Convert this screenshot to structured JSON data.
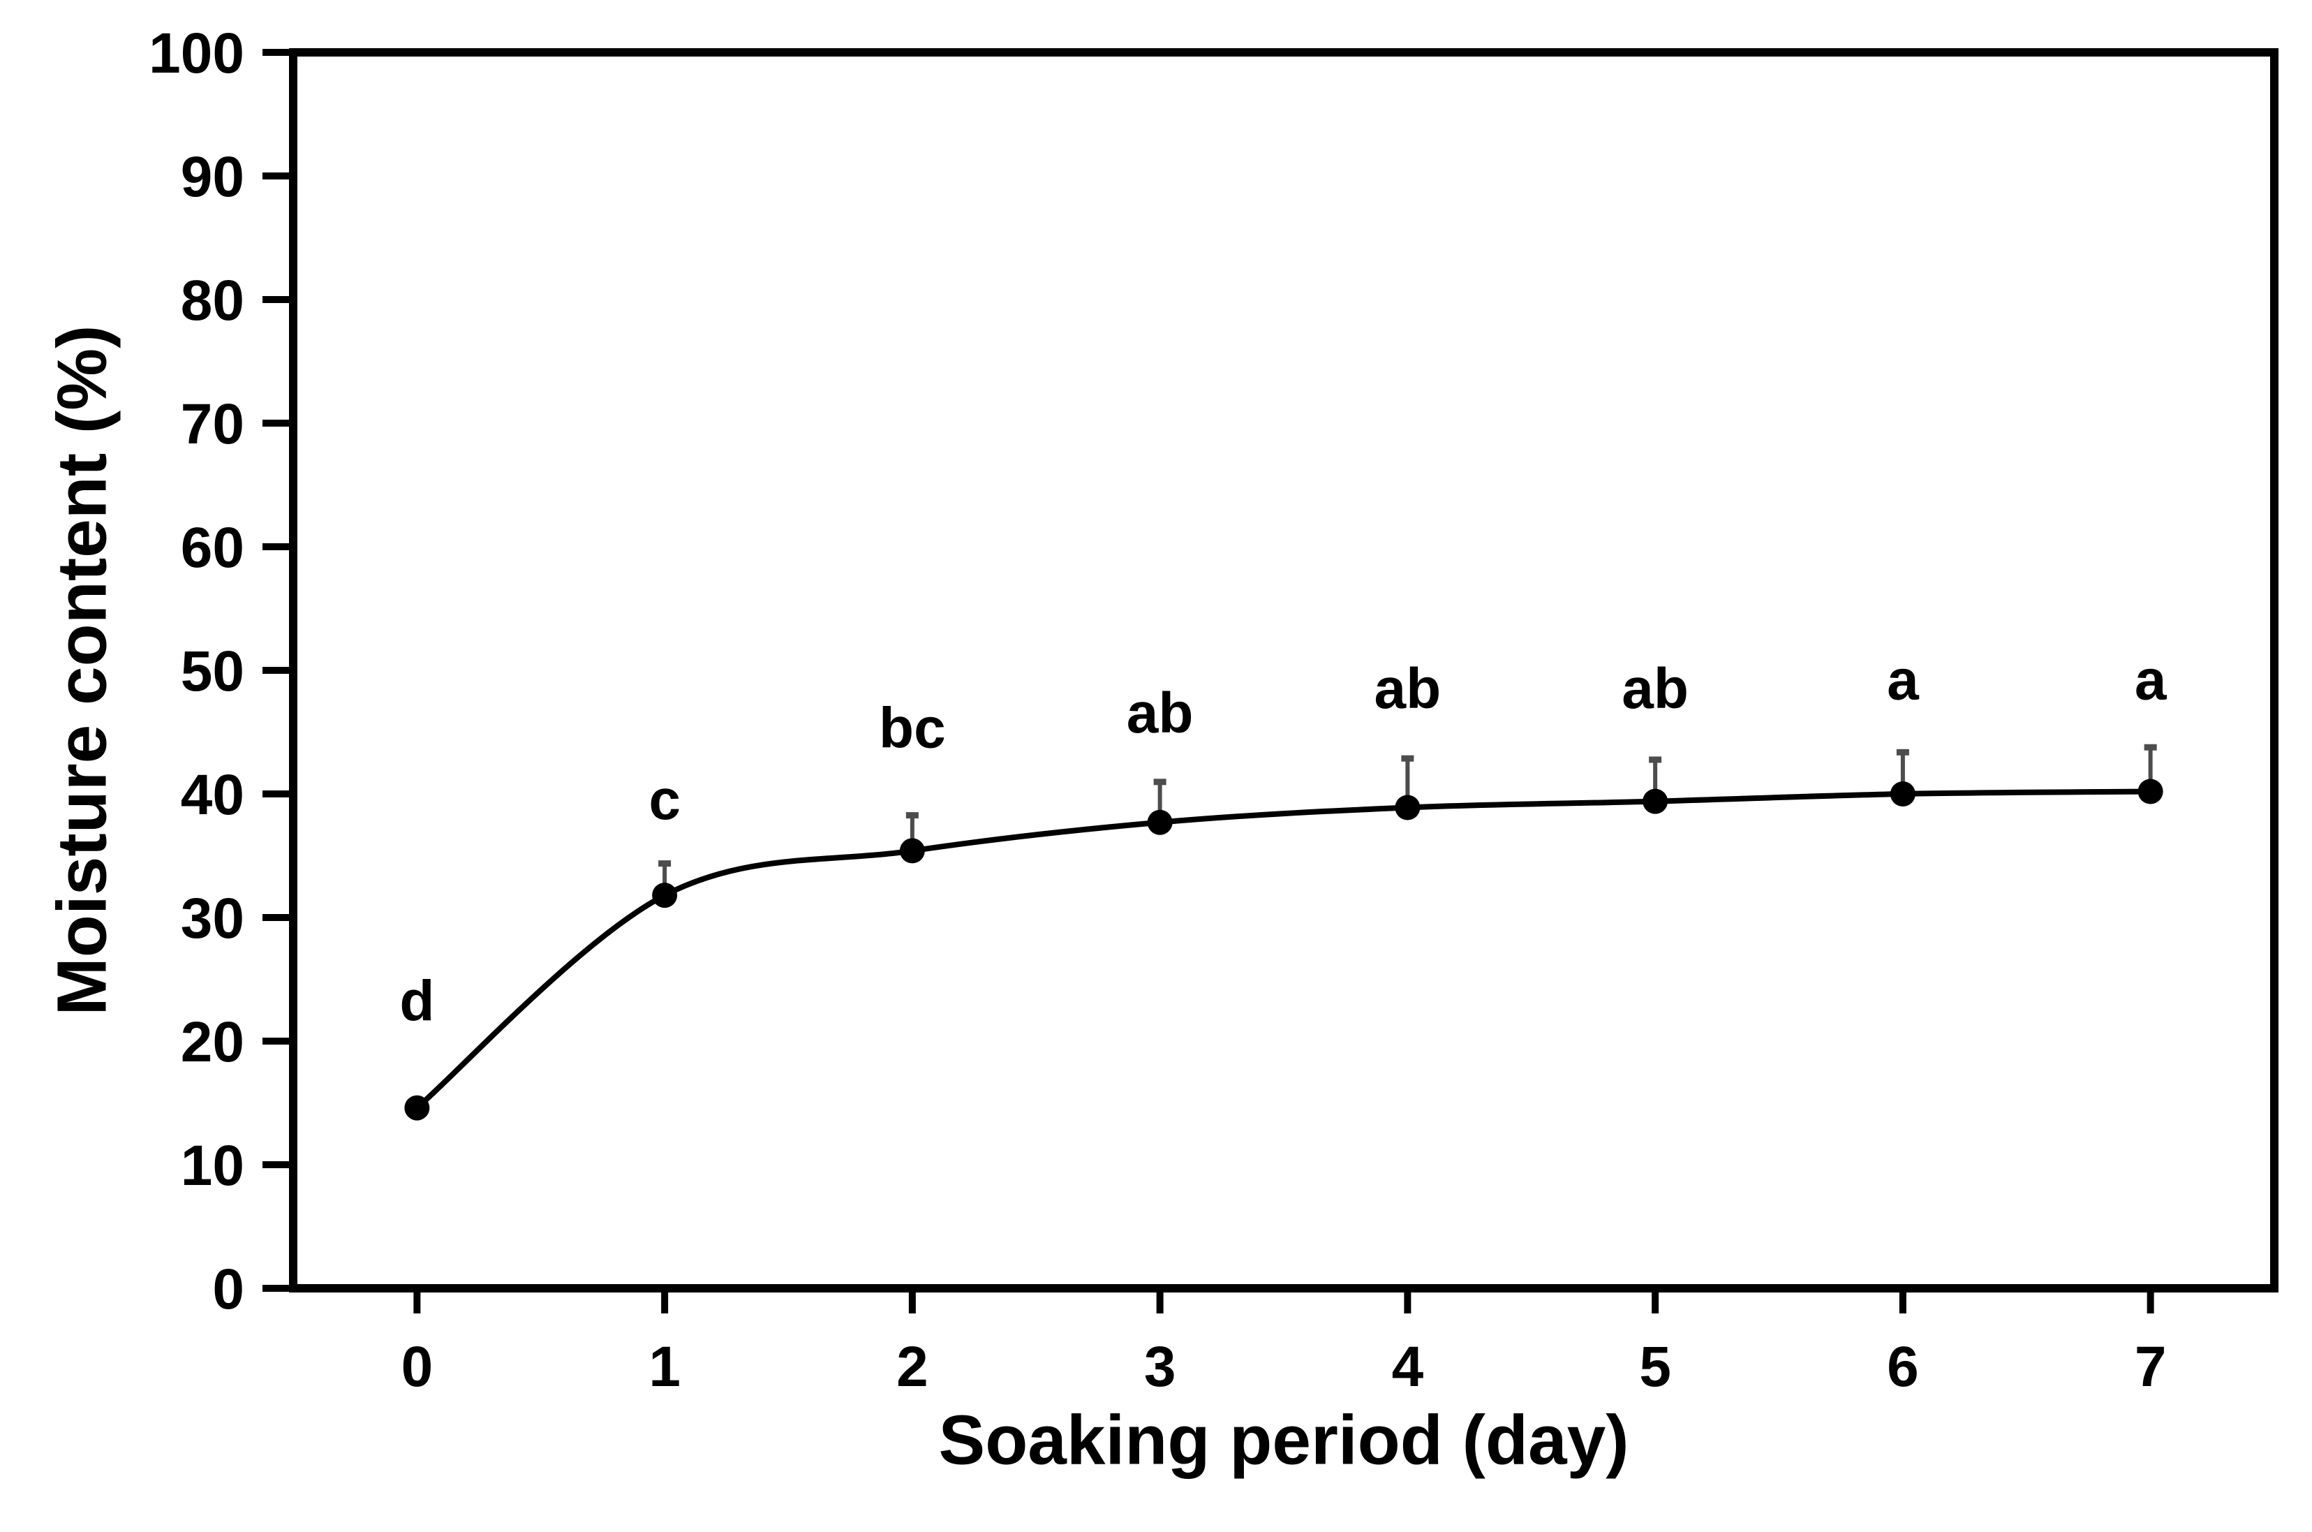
{
  "chart_data": {
    "type": "line",
    "title": "",
    "xlabel": "Soaking period (day)",
    "ylabel": "Moisture content (%)",
    "x": [
      0,
      1,
      2,
      3,
      4,
      5,
      6,
      7
    ],
    "series": [
      {
        "name": "Moisture content",
        "values": [
          14.6,
          31.8,
          35.4,
          37.7,
          38.9,
          39.4,
          40.0,
          40.2
        ],
        "error_up": [
          0,
          2.6,
          2.9,
          3.3,
          4.0,
          3.4,
          3.4,
          3.6
        ],
        "point_significance_letters": [
          "d",
          "c",
          "bc",
          "ab",
          "ab",
          "ab",
          "a",
          "a"
        ],
        "letter_y_values": [
          23.3,
          39.6,
          45.4,
          46.6,
          48.6,
          48.6,
          49.3,
          49.3
        ]
      }
    ],
    "xlim": [
      -0.5,
      7.5
    ],
    "ylim": [
      0,
      100
    ],
    "x_ticks": [
      "0",
      "1",
      "2",
      "3",
      "4",
      "5",
      "6",
      "7"
    ],
    "y_ticks": [
      "0",
      "10",
      "20",
      "30",
      "40",
      "50",
      "60",
      "70",
      "80",
      "90",
      "100"
    ],
    "x_tick_values": [
      0,
      1,
      2,
      3,
      4,
      5,
      6,
      7
    ],
    "y_tick_values": [
      0,
      10,
      20,
      30,
      40,
      50,
      60,
      70,
      80,
      90,
      100
    ],
    "grid": false,
    "legend": false,
    "marker_style": "filled-circle",
    "colors": {
      "line": "#000000",
      "marker": "#000000",
      "error_bar": "#4d4d4d",
      "axis": "#000000",
      "text": "#000000",
      "background": "#ffffff"
    }
  }
}
